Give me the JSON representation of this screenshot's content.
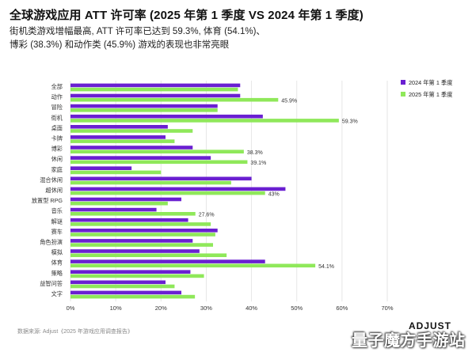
{
  "page": {
    "title": "全球游戏应用 ATT 许可率 (2025 年第 1 季度 VS 2024 年第 1 季度)",
    "subtitle_line1": "街机类游戏增幅最高, ATT 许可率已达到 59.3%, 体育 (54.1%)、",
    "subtitle_line2": "博彩 (38.3%) 和动作类 (45.9%) 游戏的表现也非常亮眼",
    "source": "数据来源: Adjust《2025 年游戏应用调查报告》",
    "logo": "ADJUST",
    "watermark": "量子魔方手游站"
  },
  "colors": {
    "series_2024": "#6a1fd1",
    "series_2025": "#8fe85a",
    "grid": "#e6e6e6",
    "axis_text": "#333333"
  },
  "chart_data": {
    "type": "bar",
    "orientation": "horizontal",
    "categories": [
      "全部",
      "动作",
      "冒险",
      "街机",
      "桌面",
      "卡牌",
      "博彩",
      "休闲",
      "家庭",
      "混合休闲",
      "超休闲",
      "放置型 RPG",
      "音乐",
      "解谜",
      "赛车",
      "角色扮演",
      "模拟",
      "体育",
      "策略",
      "益智问答",
      "文字"
    ],
    "series": [
      {
        "name": "2024 年第 1 季度",
        "values": [
          37.5,
          37.5,
          32.5,
          42.5,
          21.5,
          21,
          27,
          31,
          13.5,
          40,
          47.5,
          24.5,
          19,
          26,
          32.5,
          27,
          28.5,
          43,
          26.5,
          21,
          24.5
        ]
      },
      {
        "name": "2025 年第 1 季度",
        "values": [
          37,
          45.9,
          32.5,
          59.3,
          27,
          23,
          38.3,
          39.1,
          20,
          35.5,
          43,
          21.5,
          27.6,
          31,
          32,
          31.5,
          34.5,
          54.1,
          29.5,
          23,
          27.5
        ]
      }
    ],
    "data_labels": {
      "series_index": 1,
      "items": [
        {
          "category": "动作",
          "text": "45.9%"
        },
        {
          "category": "街机",
          "text": "59.3%"
        },
        {
          "category": "博彩",
          "text": "38.3%"
        },
        {
          "category": "休闲",
          "text": "39.1%"
        },
        {
          "category": "超休闲",
          "text": "43%"
        },
        {
          "category": "音乐",
          "text": "27.6%"
        },
        {
          "category": "体育",
          "text": "54.1%"
        }
      ]
    },
    "xlim": [
      0,
      70
    ],
    "xticks": [
      0,
      10,
      20,
      30,
      40,
      50,
      60,
      70
    ],
    "xtick_labels": [
      "0%",
      "10%",
      "20%",
      "30%",
      "40%",
      "50%",
      "60%",
      "70%"
    ],
    "xlabel": "",
    "ylabel": "",
    "grid": true,
    "legend_position": "top-right"
  }
}
